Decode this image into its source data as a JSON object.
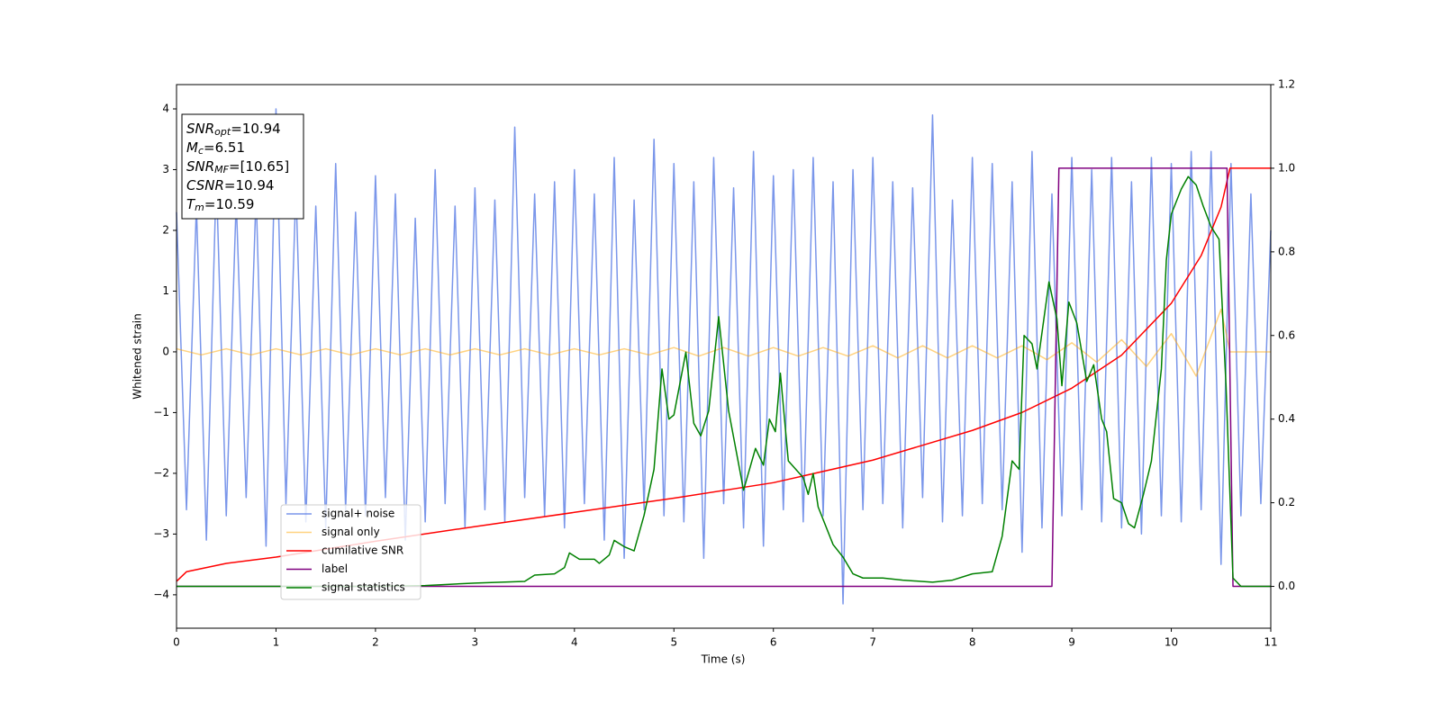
{
  "chart_data": {
    "type": "line",
    "x_label": "Time (s)",
    "y_label": "Whitened strain",
    "xlim": [
      0,
      11
    ],
    "xticks": [
      0,
      1,
      2,
      3,
      4,
      5,
      6,
      7,
      8,
      9,
      10,
      11
    ],
    "ylim": [
      -4.55,
      4.4
    ],
    "yticks": [
      {
        "value": -4,
        "label": "−4"
      },
      {
        "value": -3,
        "label": "−3"
      },
      {
        "value": -2,
        "label": "−2"
      },
      {
        "value": -1,
        "label": "−1"
      },
      0,
      1,
      2,
      3,
      4
    ],
    "y2lim": [
      -0.1,
      1.2
    ],
    "y2ticks": [
      {
        "value": 0,
        "label": "0.0"
      },
      0.2,
      0.4,
      0.6,
      0.8,
      {
        "value": 1,
        "label": "1.0"
      },
      1.2
    ],
    "annotation": [
      {
        "main": "SNR",
        "sub": "opt",
        "rest": "=10.94"
      },
      {
        "main": "M",
        "sub": "c",
        "rest": "=6.51"
      },
      {
        "main": "SNR",
        "sub": "MF",
        "rest": "=[10.65]"
      },
      {
        "main": "CSNR",
        "rest": "=10.94"
      },
      {
        "main": "T",
        "sub": "m",
        "rest": "=10.59"
      }
    ],
    "series": [
      {
        "name": "signal+ noise",
        "color": "rgba(65,105,225,0.7)",
        "x": [
          0,
          0.1,
          0.2,
          0.3,
          0.4,
          0.5,
          0.6,
          0.7,
          0.8,
          0.9,
          1,
          1.1,
          1.2,
          1.3,
          1.4,
          1.5,
          1.6,
          1.7,
          1.8,
          1.9,
          2,
          2.1,
          2.2,
          2.3,
          2.4,
          2.5,
          2.6,
          2.7,
          2.8,
          2.9,
          3,
          3.1,
          3.2,
          3.3,
          3.4,
          3.5,
          3.6,
          3.7,
          3.8,
          3.9,
          4,
          4.1,
          4.2,
          4.3,
          4.4,
          4.5,
          4.6,
          4.7,
          4.8,
          4.9,
          5,
          5.1,
          5.2,
          5.3,
          5.4,
          5.5,
          5.6,
          5.7,
          5.8,
          5.9,
          6,
          6.1,
          6.2,
          6.3,
          6.4,
          6.5,
          6.6,
          6.7,
          6.8,
          6.9,
          7,
          7.1,
          7.2,
          7.3,
          7.4,
          7.5,
          7.6,
          7.7,
          7.8,
          7.9,
          8,
          8.1,
          8.2,
          8.3,
          8.4,
          8.5,
          8.6,
          8.7,
          8.8,
          8.9,
          9,
          9.1,
          9.2,
          9.3,
          9.4,
          9.5,
          9.6,
          9.7,
          9.8,
          9.9,
          10,
          10.1,
          10.2,
          10.3,
          10.4,
          10.5,
          10.6,
          10.7,
          10.8,
          10.9,
          11
        ],
        "values": [
          2.3,
          -2.6,
          2.4,
          -3.1,
          2.9,
          -2.7,
          2.5,
          -2.4,
          2.6,
          -3.2,
          4.0,
          -2.5,
          2.7,
          -2.8,
          2.4,
          -2.9,
          3.1,
          -2.6,
          2.3,
          -2.7,
          2.9,
          -2.4,
          2.6,
          -3.1,
          2.2,
          -2.8,
          3.0,
          -2.5,
          2.4,
          -2.9,
          2.7,
          -2.6,
          2.5,
          -2.8,
          3.7,
          -2.4,
          2.6,
          -2.7,
          2.8,
          -2.9,
          3.0,
          -2.5,
          2.6,
          -3.1,
          3.2,
          -3.4,
          2.5,
          -2.6,
          3.5,
          -2.7,
          3.1,
          -2.8,
          2.8,
          -3.4,
          3.2,
          -2.5,
          2.7,
          -2.9,
          3.3,
          -3.2,
          2.9,
          -2.6,
          3.0,
          -2.8,
          3.2,
          -2.7,
          2.8,
          -4.15,
          3.0,
          -2.6,
          3.2,
          -2.5,
          2.8,
          -2.9,
          2.7,
          -2.4,
          3.9,
          -2.8,
          2.5,
          -2.7,
          3.2,
          -2.5,
          3.1,
          -2.6,
          2.8,
          -3.3,
          3.3,
          -2.9,
          2.6,
          -2.7,
          3.2,
          -2.6,
          3.0,
          -2.8,
          3.2,
          -2.9,
          2.8,
          -3.0,
          3.2,
          -2.7,
          3.1,
          -2.8,
          3.3,
          -2.6,
          3.3,
          -3.5,
          3.1,
          -2.7,
          2.6,
          -2.5,
          2.0
        ]
      },
      {
        "name": "signal only",
        "color": "rgba(255,165,0,0.5)",
        "x": [
          0,
          0.25,
          0.5,
          0.75,
          1,
          1.25,
          1.5,
          1.75,
          2,
          2.25,
          2.5,
          2.75,
          3,
          3.25,
          3.5,
          3.75,
          4,
          4.25,
          4.5,
          4.75,
          5,
          5.25,
          5.5,
          5.75,
          6,
          6.25,
          6.5,
          6.75,
          7,
          7.25,
          7.5,
          7.75,
          8,
          8.25,
          8.5,
          8.75,
          9,
          9.25,
          9.5,
          9.75,
          10,
          10.25,
          10.5,
          10.59,
          11
        ],
        "values": [
          0.05,
          -0.05,
          0.05,
          -0.05,
          0.05,
          -0.05,
          0.05,
          -0.05,
          0.05,
          -0.05,
          0.05,
          -0.05,
          0.05,
          -0.05,
          0.05,
          -0.05,
          0.05,
          -0.05,
          0.05,
          -0.05,
          0.07,
          -0.07,
          0.07,
          -0.07,
          0.07,
          -0.07,
          0.07,
          -0.07,
          0.1,
          -0.1,
          0.1,
          -0.1,
          0.1,
          -0.1,
          0.1,
          -0.13,
          0.15,
          -0.17,
          0.2,
          -0.24,
          0.3,
          -0.4,
          0.7,
          0,
          0
        ]
      },
      {
        "name": "cumilative SNR",
        "color": "#ff0000",
        "axis": "y2",
        "x": [
          0,
          0.1,
          0.5,
          1,
          2,
          3,
          4,
          5,
          6,
          7,
          8,
          8.5,
          9,
          9.5,
          10,
          10.3,
          10.5,
          10.59,
          11
        ],
        "values": [
          0.012,
          0.035,
          0.055,
          0.07,
          0.108,
          0.143,
          0.177,
          0.211,
          0.248,
          0.302,
          0.373,
          0.416,
          0.474,
          0.553,
          0.677,
          0.791,
          0.907,
          1.0,
          1.0
        ]
      },
      {
        "name": "label",
        "color": "#800080",
        "axis": "y2",
        "x": [
          0,
          8.8,
          8.87,
          10.56,
          10.62,
          11
        ],
        "values": [
          0,
          0,
          1,
          1,
          0,
          0
        ]
      },
      {
        "name": "signal statistics",
        "color": "#008000",
        "axis": "y2",
        "x": [
          0,
          1,
          2,
          2.5,
          3,
          3.5,
          3.6,
          3.8,
          3.9,
          3.95,
          4.05,
          4.2,
          4.25,
          4.35,
          4.4,
          4.5,
          4.6,
          4.7,
          4.8,
          4.88,
          4.95,
          5.0,
          5.12,
          5.2,
          5.27,
          5.35,
          5.45,
          5.55,
          5.7,
          5.82,
          5.9,
          5.96,
          6.02,
          6.07,
          6.15,
          6.3,
          6.35,
          6.4,
          6.45,
          6.6,
          6.7,
          6.8,
          6.9,
          7.1,
          7.3,
          7.6,
          7.8,
          8.0,
          8.2,
          8.3,
          8.4,
          8.47,
          8.52,
          8.6,
          8.65,
          8.77,
          8.85,
          8.9,
          8.97,
          9.05,
          9.15,
          9.22,
          9.3,
          9.35,
          9.42,
          9.5,
          9.57,
          9.63,
          9.72,
          9.8,
          9.9,
          9.95,
          10.0,
          10.1,
          10.17,
          10.25,
          10.32,
          10.4,
          10.48,
          10.55,
          10.62,
          10.7,
          11
        ],
        "values": [
          0,
          0,
          0,
          0.002,
          0.008,
          0.012,
          0.027,
          0.03,
          0.045,
          0.08,
          0.065,
          0.065,
          0.055,
          0.075,
          0.11,
          0.095,
          0.085,
          0.17,
          0.28,
          0.52,
          0.4,
          0.41,
          0.56,
          0.39,
          0.36,
          0.42,
          0.645,
          0.42,
          0.23,
          0.33,
          0.29,
          0.4,
          0.37,
          0.51,
          0.3,
          0.26,
          0.22,
          0.27,
          0.19,
          0.1,
          0.07,
          0.03,
          0.02,
          0.02,
          0.015,
          0.01,
          0.015,
          0.03,
          0.035,
          0.12,
          0.3,
          0.28,
          0.6,
          0.58,
          0.52,
          0.728,
          0.64,
          0.48,
          0.68,
          0.63,
          0.49,
          0.53,
          0.4,
          0.37,
          0.21,
          0.2,
          0.15,
          0.14,
          0.22,
          0.3,
          0.52,
          0.78,
          0.89,
          0.95,
          0.98,
          0.96,
          0.91,
          0.86,
          0.83,
          0.48,
          0.02,
          0,
          0
        ]
      }
    ]
  }
}
